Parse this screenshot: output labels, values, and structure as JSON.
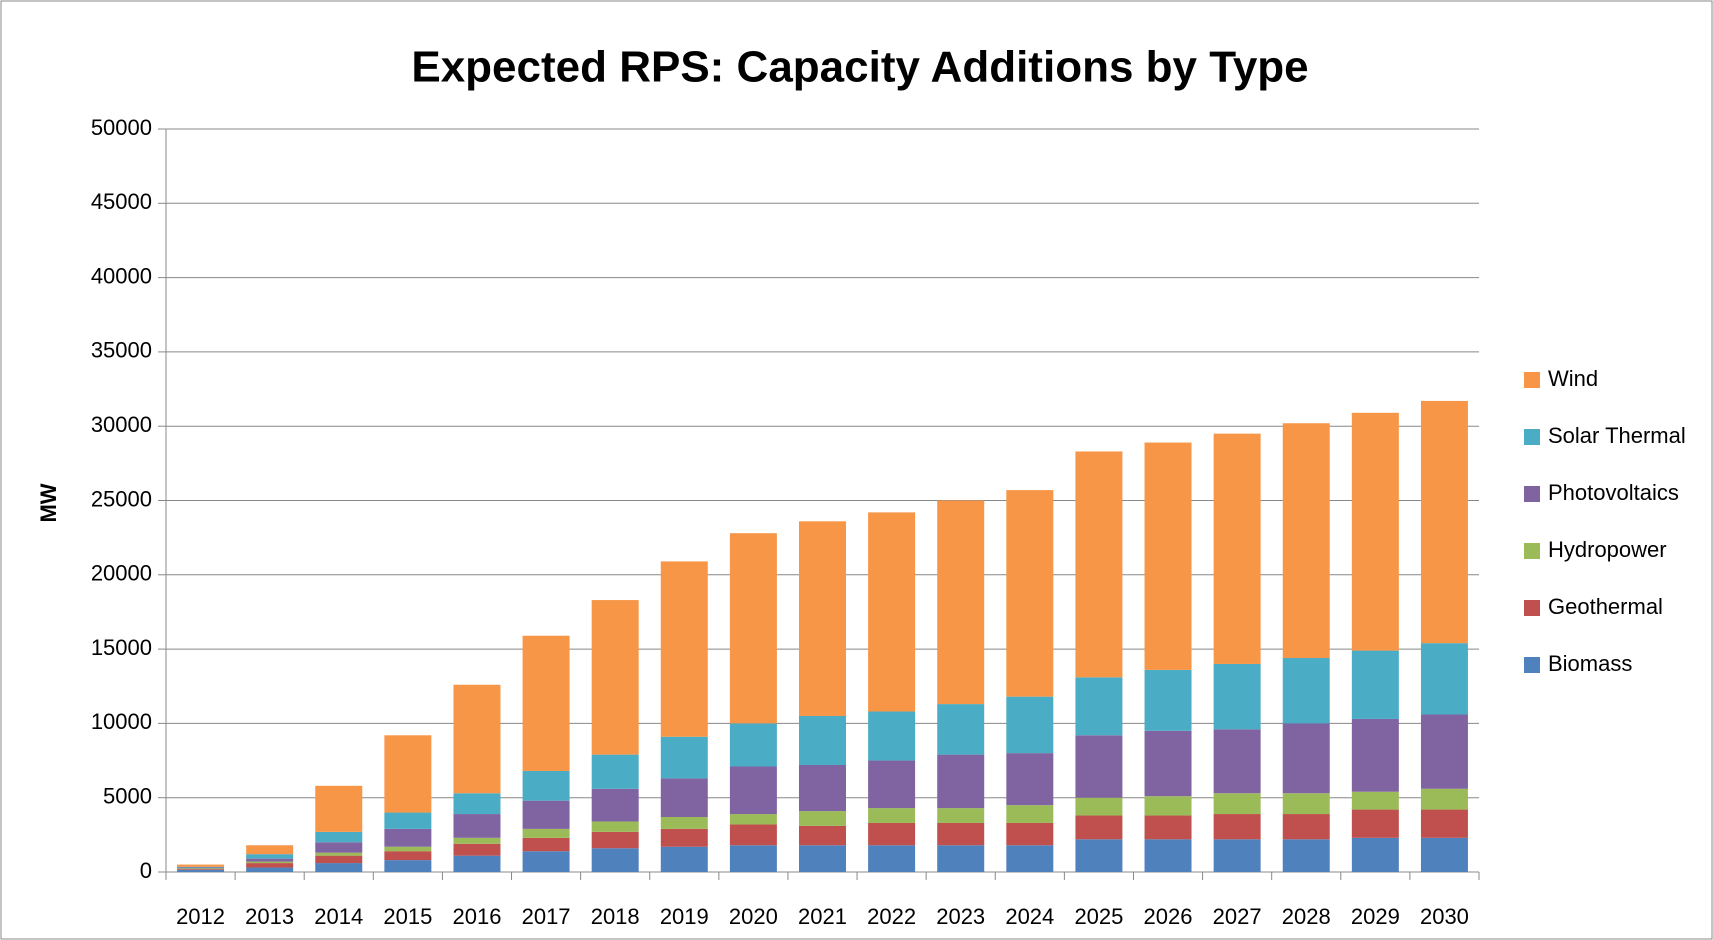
{
  "chart_data": {
    "type": "stacked_bar",
    "title": "Expected RPS: Capacity Additions by Type",
    "y_label": "MW",
    "categories": [
      "2012",
      "2013",
      "2014",
      "2015",
      "2016",
      "2017",
      "2018",
      "2019",
      "2020",
      "2021",
      "2022",
      "2023",
      "2024",
      "2025",
      "2026",
      "2027",
      "2028",
      "2029",
      "2030"
    ],
    "series": [
      {
        "name": "Biomass",
        "color": "#4f81bd",
        "values": [
          150,
          300,
          600,
          800,
          1100,
          1400,
          1600,
          1700,
          1800,
          1800,
          1800,
          1800,
          1800,
          2200,
          2200,
          2200,
          2200,
          2300,
          2300
        ]
      },
      {
        "name": "Geothermal",
        "color": "#c0504d",
        "values": [
          50,
          300,
          500,
          600,
          800,
          900,
          1100,
          1200,
          1400,
          1300,
          1500,
          1500,
          1500,
          1600,
          1600,
          1700,
          1700,
          1900,
          1900
        ]
      },
      {
        "name": "Hydropower",
        "color": "#9bbb59",
        "values": [
          50,
          100,
          200,
          300,
          400,
          600,
          700,
          800,
          700,
          1000,
          1000,
          1000,
          1200,
          1200,
          1300,
          1400,
          1400,
          1200,
          1400
        ]
      },
      {
        "name": "Photovoltaics",
        "color": "#8064a2",
        "values": [
          50,
          200,
          700,
          1200,
          1600,
          1900,
          2200,
          2600,
          3200,
          3100,
          3200,
          3600,
          3500,
          4200,
          4400,
          4300,
          4700,
          4900,
          5000
        ]
      },
      {
        "name": "Solar Thermal",
        "color": "#4bacc6",
        "values": [
          50,
          300,
          700,
          1100,
          1400,
          2000,
          2300,
          2800,
          2900,
          3300,
          3300,
          3400,
          3800,
          3900,
          4100,
          4400,
          4400,
          4600,
          4800
        ]
      },
      {
        "name": "Wind",
        "color": "#f79646",
        "values": [
          150,
          600,
          3100,
          5200,
          7300,
          9100,
          10400,
          11800,
          12800,
          13100,
          13400,
          13700,
          13900,
          15200,
          15300,
          15500,
          15800,
          16000,
          16300
        ]
      }
    ],
    "ylim": [
      0,
      50000
    ],
    "yticks": [
      0,
      5000,
      10000,
      15000,
      20000,
      25000,
      30000,
      35000,
      40000,
      45000,
      50000
    ],
    "grid": true,
    "legend": "right"
  }
}
